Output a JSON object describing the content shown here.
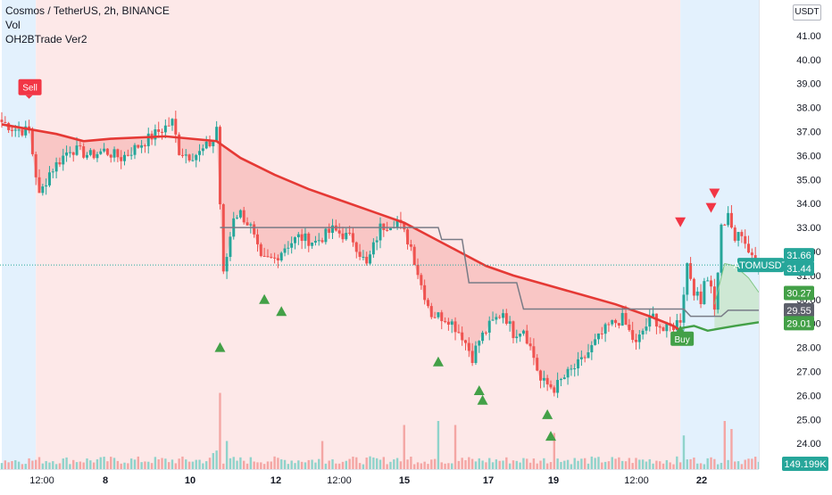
{
  "header": {
    "title": "Cosmos / TetherUS, 2h, BINANCE",
    "indicators": [
      "Vol",
      "OH2BTrade Ver2"
    ],
    "currency_button": "USDT"
  },
  "colors": {
    "up": "#26a69a",
    "down": "#ef5350",
    "sell_zone": "#fde8e8",
    "buy_zone": "#e3f1fd",
    "trend_line": "#e53935",
    "stop_line": "#787b86",
    "buy_line": "#43a047",
    "buy_fill": "#c8e6c9",
    "sell_fill": "#f6b8b6",
    "signal_up": "#43a047",
    "signal_down": "#f23645"
  },
  "signals": {
    "sell_label": "Sell",
    "buy_label": "Buy"
  },
  "price_labels": [
    {
      "text": "ATOMUSDT",
      "value": 31.44,
      "color": "#26a69a"
    },
    {
      "text": "31.66",
      "value": 31.66,
      "color": "#26a69a"
    },
    {
      "text": "31.44",
      "value": 31.44,
      "color": "#26a69a"
    },
    {
      "text": "30.27",
      "value": 30.27,
      "color": "#43a047"
    },
    {
      "text": "29.55",
      "value": 29.55,
      "color": "#5d606b"
    },
    {
      "text": "29.01",
      "value": 29.01,
      "color": "#43a047"
    },
    {
      "text": "149.199K",
      "value": 149199,
      "color": "#26a69a"
    }
  ],
  "chart_data": {
    "type": "candlestick",
    "title": "Cosmos / TetherUS, 2h, BINANCE",
    "xlabel": "",
    "ylabel": "USDT",
    "ylim": [
      23.3,
      42.3
    ],
    "y_ticks": [
      "42.00",
      "41.00",
      "40.00",
      "39.00",
      "38.00",
      "37.00",
      "36.00",
      "35.00",
      "34.00",
      "33.00",
      "32.00",
      "31.00",
      "30.00",
      "29.00",
      "28.00",
      "27.00",
      "26.00",
      "25.00",
      "24.00"
    ],
    "x_tick_labels": [
      "12:00",
      "8",
      "10",
      "12",
      "12:00",
      "15",
      "17",
      "19",
      "12:00",
      "22"
    ],
    "grid": false,
    "legend_position": "top-left",
    "close_path": [
      [
        0,
        37.4
      ],
      [
        4,
        37.1
      ],
      [
        8,
        37.0
      ],
      [
        11,
        34.3
      ],
      [
        14,
        35.3
      ],
      [
        20,
        36.3
      ],
      [
        26,
        36.0
      ],
      [
        30,
        36.2
      ],
      [
        35,
        35.9
      ],
      [
        40,
        36.4
      ],
      [
        45,
        36.9
      ],
      [
        50,
        37.4
      ],
      [
        52,
        36.2
      ],
      [
        55,
        36.0
      ],
      [
        58,
        36.1
      ],
      [
        62,
        36.6
      ],
      [
        63,
        37.2
      ],
      [
        64,
        34.0
      ],
      [
        65,
        31.0
      ],
      [
        66,
        31.8
      ],
      [
        68,
        33.5
      ],
      [
        70,
        33.6
      ],
      [
        73,
        33.0
      ],
      [
        76,
        31.6
      ],
      [
        80,
        31.7
      ],
      [
        83,
        32.2
      ],
      [
        87,
        32.6
      ],
      [
        92,
        32.4
      ],
      [
        97,
        32.9
      ],
      [
        103,
        32.5
      ],
      [
        107,
        31.4
      ],
      [
        111,
        33.0
      ],
      [
        116,
        33.3
      ],
      [
        120,
        32.2
      ],
      [
        123,
        30.6
      ],
      [
        126,
        29.4
      ],
      [
        131,
        29.2
      ],
      [
        135,
        28.5
      ],
      [
        138,
        27.6
      ],
      [
        140,
        28.3
      ],
      [
        143,
        28.9
      ],
      [
        147,
        29.5
      ],
      [
        150,
        28.6
      ],
      [
        153,
        28.8
      ],
      [
        156,
        27.6
      ],
      [
        158,
        26.6
      ],
      [
        162,
        26.3
      ],
      [
        166,
        26.9
      ],
      [
        170,
        27.4
      ],
      [
        174,
        28.2
      ],
      [
        178,
        28.9
      ],
      [
        182,
        29.2
      ],
      [
        186,
        28.1
      ],
      [
        188,
        28.7
      ],
      [
        191,
        29.3
      ],
      [
        194,
        28.7
      ],
      [
        197,
        28.9
      ],
      [
        199,
        29.2
      ],
      [
        201,
        31.5
      ],
      [
        203,
        30.4
      ],
      [
        205,
        29.8
      ],
      [
        206,
        31.0
      ],
      [
        208,
        30.7
      ],
      [
        209,
        29.5
      ],
      [
        211,
        33.0
      ],
      [
        213,
        33.4
      ],
      [
        215,
        32.5
      ],
      [
        217,
        32.8
      ],
      [
        219,
        32.0
      ],
      [
        221,
        31.3
      ],
      [
        222,
        31.44
      ]
    ],
    "series": [
      {
        "name": "",
        "type": "trend",
        "points": [
          [
            0,
            37.3
          ],
          [
            16,
            36.9
          ],
          [
            24,
            36.6
          ],
          [
            32,
            36.7
          ],
          [
            48,
            36.8
          ],
          [
            63,
            36.6
          ],
          [
            70,
            35.9
          ],
          [
            80,
            35.2
          ],
          [
            90,
            34.6
          ],
          [
            100,
            34.1
          ],
          [
            110,
            33.6
          ],
          [
            118,
            33.2
          ],
          [
            126,
            32.6
          ],
          [
            134,
            32.0
          ],
          [
            142,
            31.4
          ],
          [
            150,
            31.0
          ],
          [
            160,
            30.6
          ],
          [
            170,
            30.2
          ],
          [
            180,
            29.8
          ],
          [
            190,
            29.3
          ],
          [
            197,
            28.9
          ],
          [
            199,
            28.7
          ]
        ]
      },
      {
        "name": "",
        "type": "stop",
        "points": [
          [
            64,
            33.0
          ],
          [
            113,
            33.0
          ],
          [
            113,
            33.0
          ],
          [
            128,
            33.0
          ],
          [
            129,
            32.5
          ],
          [
            135,
            32.5
          ],
          [
            137,
            30.7
          ],
          [
            151,
            30.7
          ],
          [
            153,
            29.6
          ],
          [
            200,
            29.6
          ],
          [
            202,
            29.3
          ],
          [
            211,
            29.3
          ],
          [
            213,
            29.55
          ],
          [
            222,
            29.55
          ]
        ]
      },
      {
        "name": "",
        "type": "buy_support",
        "points": [
          [
            199,
            28.8
          ],
          [
            203,
            28.9
          ],
          [
            207,
            28.7
          ],
          [
            211,
            28.8
          ],
          [
            215,
            28.9
          ],
          [
            222,
            29.05
          ]
        ]
      },
      {
        "name": "",
        "type": "buy_upper",
        "points": [
          [
            209,
            29.8
          ],
          [
            212,
            31.5
          ],
          [
            215,
            31.4
          ],
          [
            219,
            30.9
          ],
          [
            222,
            30.3
          ]
        ]
      }
    ],
    "volume": {
      "scale": "relative",
      "peaks": [
        [
          64,
          0.95
        ],
        [
          94,
          0.35
        ],
        [
          118,
          0.55
        ],
        [
          128,
          0.6
        ],
        [
          133,
          0.55
        ],
        [
          162,
          0.45
        ],
        [
          200,
          0.42
        ],
        [
          212,
          0.6
        ],
        [
          214,
          0.5
        ]
      ]
    },
    "signals_data": [
      {
        "type": "sell",
        "x": 8,
        "price": 37.4,
        "labeled": true
      },
      {
        "type": "buy_triangle",
        "x": 64,
        "price": 28.0
      },
      {
        "type": "buy_triangle",
        "x": 77,
        "price": 30.0
      },
      {
        "type": "buy_triangle",
        "x": 82,
        "price": 29.5
      },
      {
        "type": "buy_triangle",
        "x": 128,
        "price": 27.4
      },
      {
        "type": "buy_triangle",
        "x": 140,
        "price": 26.2
      },
      {
        "type": "buy_triangle",
        "x": 141,
        "price": 25.8
      },
      {
        "type": "buy_triangle",
        "x": 160,
        "price": 25.2
      },
      {
        "type": "buy_triangle",
        "x": 161,
        "price": 24.3
      },
      {
        "type": "buy",
        "x": 199,
        "price": 28.7,
        "labeled": true
      },
      {
        "type": "sell_triangle",
        "x": 199,
        "price": 33.2
      },
      {
        "type": "sell_triangle",
        "x": 208,
        "price": 33.8
      },
      {
        "type": "sell_triangle",
        "x": 209,
        "price": 34.4
      }
    ],
    "zones": [
      {
        "type": "buy",
        "from": 0,
        "to": 10
      },
      {
        "type": "sell",
        "from": 10,
        "to": 199
      },
      {
        "type": "buy",
        "from": 199,
        "to": 222
      }
    ]
  }
}
